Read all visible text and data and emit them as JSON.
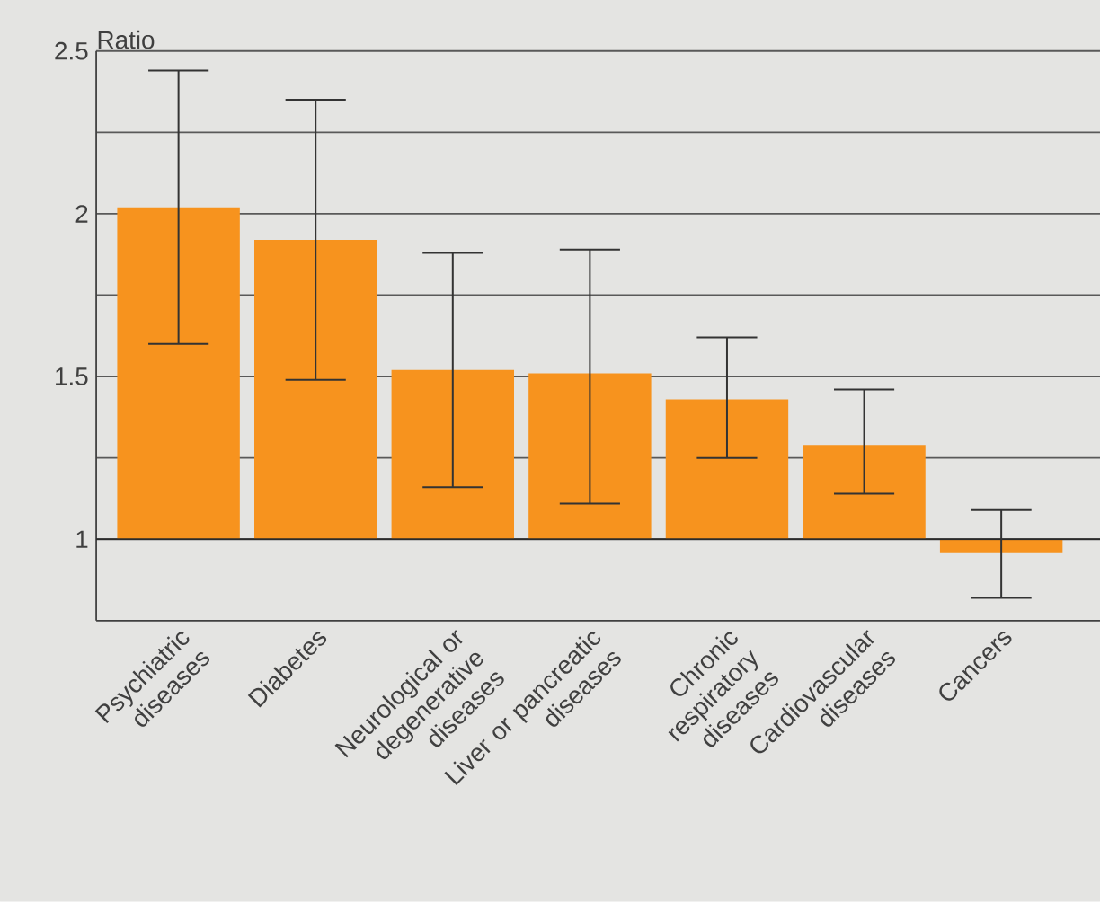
{
  "chart_data": {
    "type": "bar",
    "ylabel": "Ratio",
    "categories": [
      "Psychiatric diseases",
      "Diabetes",
      "Neurological or degenerative diseases",
      "Liver or pancreatic diseases",
      "Chronic respiratory diseases",
      "Cardiovascular diseases",
      "Cancers"
    ],
    "base": [
      1,
      1,
      1,
      1,
      1,
      1,
      1
    ],
    "values": [
      1.02,
      0.92,
      0.52,
      0.51,
      0.43,
      0.29,
      -0.04
    ],
    "errors": [
      [
        1.6,
        2.44
      ],
      [
        1.49,
        2.35
      ],
      [
        1.16,
        1.88
      ],
      [
        1.11,
        1.89
      ],
      [
        1.25,
        1.62
      ],
      [
        1.14,
        1.46
      ],
      [
        0.82,
        1.09
      ]
    ],
    "color": "#f7931e",
    "ylim": [
      0.75,
      2.5
    ],
    "yticks": [
      1,
      {
        "value": 1.25,
        "label": null
      },
      1.5,
      {
        "value": 1.75,
        "label": null
      },
      2,
      {
        "value": 2.25,
        "label": null
      },
      2.5
    ],
    "grid": "y",
    "ref_lines": [
      {
        "axis": "y",
        "value": 1,
        "color": "#2b2b2b"
      }
    ]
  }
}
